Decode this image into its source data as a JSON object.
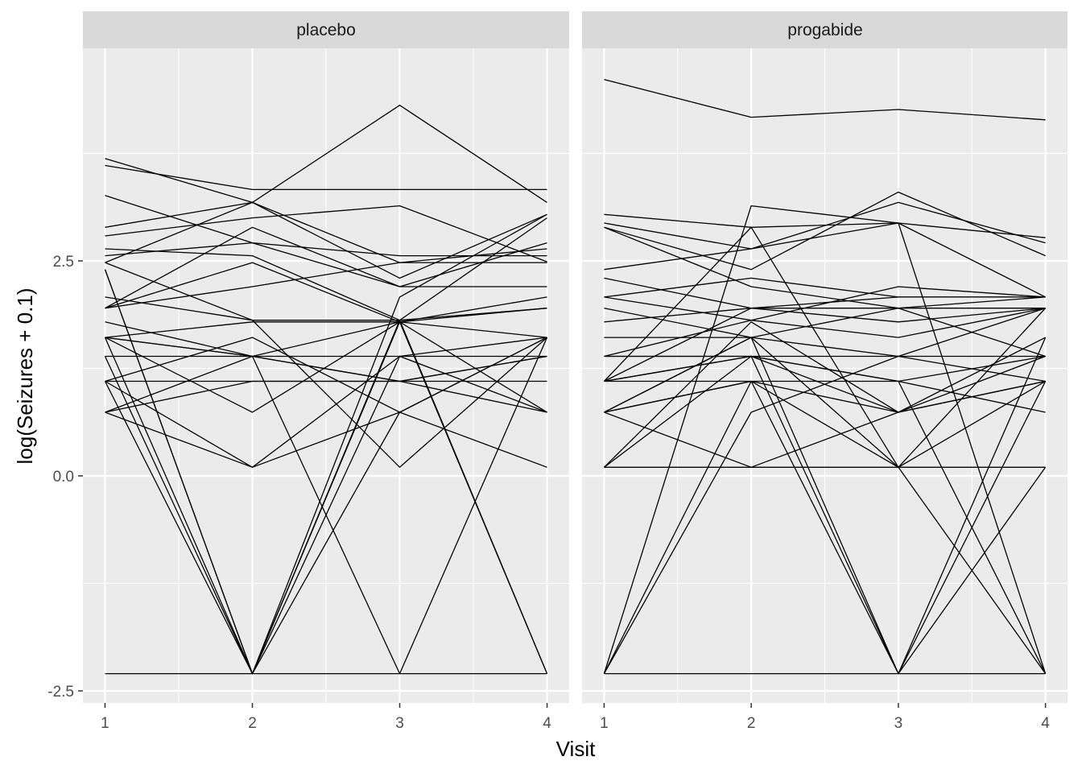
{
  "chart_data": {
    "type": "line",
    "xlabel": "Visit",
    "ylabel": "log(Seizures + 0.1)",
    "x": [
      1,
      2,
      3,
      4
    ],
    "x_tick_labels": [
      "1",
      "2",
      "3",
      "4"
    ],
    "y_ticks": [
      2.5,
      0.0,
      -2.5
    ],
    "y_tick_labels": [
      "2.5",
      "0.0",
      "-2.5"
    ],
    "ylim": [
      -2.6,
      5.0
    ],
    "xlim": [
      0.85,
      4.15
    ],
    "grid": true,
    "colors": {
      "panel_bg": "#ebebeb",
      "strip_bg": "#d9d9d9",
      "grid": "#ffffff",
      "line": "#000000",
      "tick": "#333333"
    },
    "panels": [
      {
        "name": "placebo",
        "series": [
          [
            3.61,
            3.33,
            3.33,
            3.33
          ],
          [
            3.69,
            3.18,
            4.31,
            3.18
          ],
          [
            3.26,
            2.71,
            2.2,
            2.71
          ],
          [
            2.89,
            3.18,
            2.3,
            3.04
          ],
          [
            2.79,
            3.0,
            3.14,
            2.49
          ],
          [
            2.64,
            2.56,
            1.81,
            3.0
          ],
          [
            2.56,
            2.71,
            2.56,
            2.56
          ],
          [
            2.48,
            3.18,
            2.48,
            2.48
          ],
          [
            2.08,
            1.81,
            1.81,
            1.95
          ],
          [
            1.95,
            2.89,
            2.2,
            2.2
          ],
          [
            1.95,
            2.2,
            2.48,
            2.64
          ],
          [
            1.79,
            1.39,
            1.1,
            0.74
          ],
          [
            1.61,
            1.79,
            1.79,
            1.61
          ],
          [
            1.61,
            1.39,
            1.1,
            1.39
          ],
          [
            1.61,
            0.74,
            1.79,
            1.95
          ],
          [
            1.39,
            1.39,
            1.39,
            1.39
          ],
          [
            1.1,
            1.1,
            1.1,
            1.1
          ],
          [
            1.1,
            1.61,
            0.74,
            0.1
          ],
          [
            1.1,
            0.1,
            0.74,
            1.61
          ],
          [
            0.74,
            1.39,
            1.79,
            2.08
          ],
          [
            0.74,
            0.1,
            1.39,
            0.74
          ],
          [
            0.74,
            1.1,
            1.1,
            1.39
          ],
          [
            2.4,
            -2.3,
            2.08,
            3.04
          ],
          [
            2.48,
            1.81,
            0.1,
            1.61
          ],
          [
            2.4,
            -2.3,
            1.81,
            -2.3
          ],
          [
            1.61,
            -2.3,
            1.79,
            -2.3
          ],
          [
            1.39,
            -2.3,
            0.74,
            1.61
          ],
          [
            1.1,
            -2.3,
            1.39,
            1.61
          ],
          [
            1.61,
            1.39,
            -2.3,
            1.61
          ],
          [
            -2.3,
            -2.3,
            -2.3,
            -2.3
          ],
          [
            1.95,
            2.48,
            1.79,
            0.74
          ]
        ]
      },
      {
        "name": "progabide",
        "series": [
          [
            4.61,
            4.17,
            4.26,
            4.14
          ],
          [
            3.04,
            2.89,
            2.94,
            2.77
          ],
          [
            2.94,
            2.64,
            3.18,
            2.71
          ],
          [
            2.89,
            2.2,
            1.95,
            2.08
          ],
          [
            2.4,
            2.64,
            2.94,
            2.08
          ],
          [
            2.3,
            1.95,
            1.95,
            1.95
          ],
          [
            2.08,
            2.3,
            2.08,
            2.08
          ],
          [
            2.08,
            1.81,
            2.2,
            2.08
          ],
          [
            1.95,
            1.61,
            1.95,
            1.39
          ],
          [
            1.79,
            1.95,
            1.79,
            1.95
          ],
          [
            1.61,
            1.61,
            1.39,
            1.1
          ],
          [
            1.39,
            1.39,
            1.1,
            0.74
          ],
          [
            1.39,
            1.81,
            1.61,
            1.95
          ],
          [
            1.1,
            1.39,
            1.1,
            1.39
          ],
          [
            1.1,
            1.39,
            0.74,
            1.61
          ],
          [
            1.1,
            1.95,
            2.08,
            2.08
          ],
          [
            0.74,
            1.1,
            0.74,
            1.1
          ],
          [
            0.74,
            1.61,
            0.1,
            1.1
          ],
          [
            0.74,
            0.1,
            0.74,
            1.1
          ],
          [
            0.1,
            0.1,
            0.1,
            0.1
          ],
          [
            0.1,
            1.39,
            1.39,
            1.95
          ],
          [
            0.1,
            1.79,
            0.74,
            1.39
          ],
          [
            2.89,
            2.4,
            3.3,
            2.56
          ],
          [
            1.1,
            2.89,
            0.1,
            1.95
          ],
          [
            -2.3,
            0.74,
            1.39,
            1.39
          ],
          [
            -2.3,
            1.1,
            0.1,
            -2.3
          ],
          [
            -2.3,
            3.14,
            2.94,
            -2.3
          ],
          [
            1.39,
            1.39,
            -2.3,
            1.1
          ],
          [
            0.74,
            1.1,
            -2.3,
            0.1
          ],
          [
            -2.3,
            -2.3,
            -2.3,
            -2.3
          ],
          [
            0.74,
            1.61,
            -2.3,
            1.61
          ],
          [
            1.1,
            1.1,
            1.1,
            -2.3
          ]
        ]
      }
    ]
  }
}
